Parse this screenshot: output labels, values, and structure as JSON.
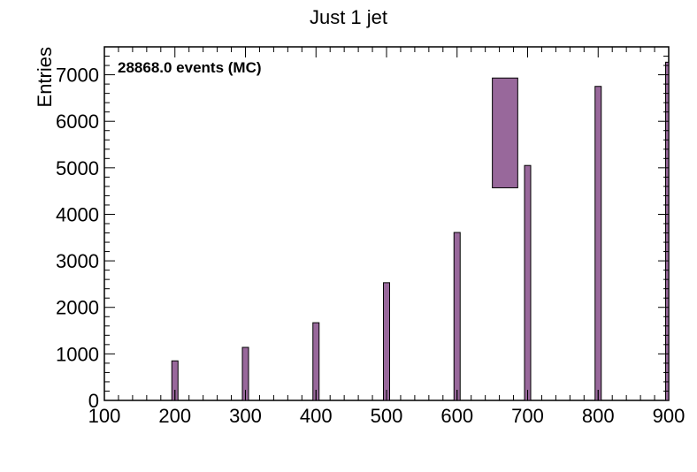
{
  "chart_data": {
    "type": "bar",
    "title": "Just 1 jet",
    "xlabel": "",
    "ylabel": "Entries",
    "annotation": "28868.0 events (MC)",
    "xlim": [
      100,
      900
    ],
    "ylim": [
      0,
      7600
    ],
    "x_ticks": [
      "100",
      "200",
      "300",
      "400",
      "500",
      "600",
      "700",
      "800",
      "900"
    ],
    "y_ticks": [
      "0",
      "1000",
      "2000",
      "3000",
      "4000",
      "5000",
      "6000",
      "7000"
    ],
    "bar_color": "#98689b",
    "bar_edge_color": "#000000",
    "bars": [
      {
        "x": 200,
        "value": 850
      },
      {
        "x": 300,
        "value": 1140
      },
      {
        "x": 400,
        "value": 1670
      },
      {
        "x": 500,
        "value": 2530
      },
      {
        "x": 600,
        "value": 3610
      },
      {
        "x": 700,
        "value": 5050
      },
      {
        "x": 800,
        "value": 6750
      },
      {
        "x": 900,
        "value": 7270
      }
    ],
    "legend_box": {
      "x_from": 650,
      "x_to": 686,
      "y_from": 4570,
      "y_to": 6930
    },
    "grid": false
  }
}
